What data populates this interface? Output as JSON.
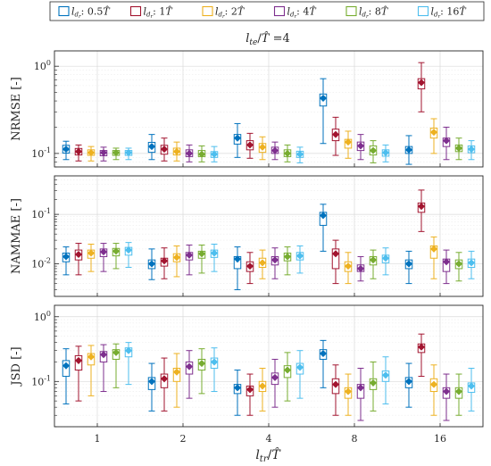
{
  "chart_data": {
    "type": "box",
    "title": "l_te / T̂ = 4",
    "xlabel": "l_tr / T̂",
    "categories": [
      "1",
      "2",
      "4",
      "8",
      "16"
    ],
    "legend": {
      "placement": "top",
      "entries": [
        {
          "label": "l_dr: 0.5T̂",
          "color": "#0072BD"
        },
        {
          "label": "l_dr: 1T̂",
          "color": "#A2142F"
        },
        {
          "label": "l_dr: 2T̂",
          "color": "#EDB120"
        },
        {
          "label": "l_dr: 4T̂",
          "color": "#7E2F8E"
        },
        {
          "label": "l_dr: 8T̂",
          "color": "#77AC30"
        },
        {
          "label": "l_dr: 16T̂",
          "color": "#4DBEEE"
        }
      ]
    },
    "panels": [
      {
        "ylabel": "NRMSE [-]",
        "yscale": "log",
        "ylim": [
          0.07,
          1.5
        ],
        "yticks": [
          {
            "label": "10",
            "exp": "0"
          },
          {
            "label": "10",
            "exp": "-1"
          }
        ],
        "series": [
          {
            "name": "l_dr: 0.5T̂",
            "values": [
              {
                "median": 0.112,
                "q1": 0.101,
                "q3": 0.124,
                "wlo": 0.085,
                "whi": 0.138
              },
              {
                "median": 0.12,
                "q1": 0.103,
                "q3": 0.134,
                "wlo": 0.085,
                "whi": 0.165
              },
              {
                "median": 0.15,
                "q1": 0.128,
                "q3": 0.165,
                "wlo": 0.09,
                "whi": 0.22
              },
              {
                "median": 0.43,
                "q1": 0.35,
                "q3": 0.48,
                "wlo": 0.13,
                "whi": 0.72
              },
              {
                "median": 0.11,
                "q1": 0.1,
                "q3": 0.12,
                "wlo": 0.075,
                "whi": 0.16
              }
            ]
          },
          {
            "name": "l_dr: 1T̂",
            "values": [
              {
                "median": 0.105,
                "q1": 0.096,
                "q3": 0.114,
                "wlo": 0.082,
                "whi": 0.125
              },
              {
                "median": 0.112,
                "q1": 0.098,
                "q3": 0.124,
                "wlo": 0.082,
                "whi": 0.15
              },
              {
                "median": 0.125,
                "q1": 0.11,
                "q3": 0.14,
                "wlo": 0.088,
                "whi": 0.17
              },
              {
                "median": 0.165,
                "q1": 0.14,
                "q3": 0.19,
                "wlo": 0.095,
                "whi": 0.26
              },
              {
                "median": 0.65,
                "q1": 0.55,
                "q3": 0.72,
                "wlo": 0.3,
                "whi": 1.1
              }
            ]
          },
          {
            "name": "l_dr: 2T̂",
            "values": [
              {
                "median": 0.102,
                "q1": 0.095,
                "q3": 0.11,
                "wlo": 0.082,
                "whi": 0.12
              },
              {
                "median": 0.105,
                "q1": 0.096,
                "q3": 0.115,
                "wlo": 0.082,
                "whi": 0.135
              },
              {
                "median": 0.118,
                "q1": 0.103,
                "q3": 0.13,
                "wlo": 0.085,
                "whi": 0.155
              },
              {
                "median": 0.135,
                "q1": 0.115,
                "q3": 0.145,
                "wlo": 0.088,
                "whi": 0.18
              },
              {
                "median": 0.175,
                "q1": 0.15,
                "q3": 0.195,
                "wlo": 0.1,
                "whi": 0.25
              }
            ]
          },
          {
            "name": "l_dr: 4T̂",
            "values": [
              {
                "median": 0.102,
                "q1": 0.094,
                "q3": 0.108,
                "wlo": 0.082,
                "whi": 0.118
              },
              {
                "median": 0.1,
                "q1": 0.092,
                "q3": 0.11,
                "wlo": 0.08,
                "whi": 0.125
              },
              {
                "median": 0.108,
                "q1": 0.1,
                "q3": 0.118,
                "wlo": 0.085,
                "whi": 0.135
              },
              {
                "median": 0.122,
                "q1": 0.108,
                "q3": 0.135,
                "wlo": 0.085,
                "whi": 0.165
              },
              {
                "median": 0.14,
                "q1": 0.12,
                "q3": 0.15,
                "wlo": 0.085,
                "whi": 0.2
              }
            ]
          },
          {
            "name": "l_dr: 8T̂",
            "values": [
              {
                "median": 0.102,
                "q1": 0.095,
                "q3": 0.108,
                "wlo": 0.085,
                "whi": 0.115
              },
              {
                "median": 0.098,
                "q1": 0.092,
                "q3": 0.108,
                "wlo": 0.08,
                "whi": 0.122
              },
              {
                "median": 0.1,
                "q1": 0.092,
                "q3": 0.11,
                "wlo": 0.08,
                "whi": 0.125
              },
              {
                "median": 0.108,
                "q1": 0.096,
                "q3": 0.122,
                "wlo": 0.078,
                "whi": 0.14
              },
              {
                "median": 0.115,
                "q1": 0.105,
                "q3": 0.125,
                "wlo": 0.085,
                "whi": 0.15
              }
            ]
          },
          {
            "name": "l_dr: 16T̂",
            "values": [
              {
                "median": 0.102,
                "q1": 0.095,
                "q3": 0.108,
                "wlo": 0.085,
                "whi": 0.115
              },
              {
                "median": 0.098,
                "q1": 0.09,
                "q3": 0.105,
                "wlo": 0.08,
                "whi": 0.12
              },
              {
                "median": 0.098,
                "q1": 0.09,
                "q3": 0.106,
                "wlo": 0.078,
                "whi": 0.118
              },
              {
                "median": 0.102,
                "q1": 0.093,
                "q3": 0.11,
                "wlo": 0.08,
                "whi": 0.125
              },
              {
                "median": 0.112,
                "q1": 0.102,
                "q3": 0.122,
                "wlo": 0.085,
                "whi": 0.14
              }
            ]
          }
        ]
      },
      {
        "ylabel": "NAMMAE [-]",
        "yscale": "log",
        "ylim": [
          0.0022,
          0.6
        ],
        "yticks": [
          {
            "label": "10",
            "exp": "-1"
          },
          {
            "label": "10",
            "exp": "-2"
          }
        ],
        "series": [
          {
            "name": "l_dr: 0.5T̂",
            "values": [
              {
                "median": 0.014,
                "q1": 0.011,
                "q3": 0.0165,
                "wlo": 0.006,
                "whi": 0.022
              },
              {
                "median": 0.01,
                "q1": 0.008,
                "q3": 0.012,
                "wlo": 0.0048,
                "whi": 0.02
              },
              {
                "median": 0.0125,
                "q1": 0.008,
                "q3": 0.014,
                "wlo": 0.003,
                "whi": 0.022
              },
              {
                "median": 0.095,
                "q1": 0.06,
                "q3": 0.11,
                "wlo": 0.018,
                "whi": 0.16
              },
              {
                "median": 0.01,
                "q1": 0.008,
                "q3": 0.012,
                "wlo": 0.004,
                "whi": 0.018
              }
            ]
          },
          {
            "name": "l_dr: 1T̂",
            "values": [
              {
                "median": 0.0155,
                "q1": 0.012,
                "q3": 0.019,
                "wlo": 0.006,
                "whi": 0.026
              },
              {
                "median": 0.0115,
                "q1": 0.009,
                "q3": 0.013,
                "wlo": 0.005,
                "whi": 0.021
              },
              {
                "median": 0.009,
                "q1": 0.007,
                "q3": 0.011,
                "wlo": 0.004,
                "whi": 0.017
              },
              {
                "median": 0.016,
                "q1": 0.008,
                "q3": 0.02,
                "wlo": 0.004,
                "whi": 0.03
              },
              {
                "median": 0.145,
                "q1": 0.11,
                "q3": 0.17,
                "wlo": 0.045,
                "whi": 0.31
              }
            ]
          },
          {
            "name": "l_dr: 2T̂",
            "values": [
              {
                "median": 0.0165,
                "q1": 0.013,
                "q3": 0.019,
                "wlo": 0.007,
                "whi": 0.025
              },
              {
                "median": 0.0135,
                "q1": 0.011,
                "q3": 0.016,
                "wlo": 0.0055,
                "whi": 0.023
              },
              {
                "median": 0.0105,
                "q1": 0.0085,
                "q3": 0.013,
                "wlo": 0.005,
                "whi": 0.019
              },
              {
                "median": 0.009,
                "q1": 0.007,
                "q3": 0.011,
                "wlo": 0.004,
                "whi": 0.017
              },
              {
                "median": 0.02,
                "q1": 0.013,
                "q3": 0.023,
                "wlo": 0.005,
                "whi": 0.035
              }
            ]
          },
          {
            "name": "l_dr: 4T̂",
            "values": [
              {
                "median": 0.0175,
                "q1": 0.014,
                "q3": 0.02,
                "wlo": 0.007,
                "whi": 0.026
              },
              {
                "median": 0.015,
                "q1": 0.012,
                "q3": 0.017,
                "wlo": 0.006,
                "whi": 0.024
              },
              {
                "median": 0.012,
                "q1": 0.0095,
                "q3": 0.014,
                "wlo": 0.005,
                "whi": 0.021
              },
              {
                "median": 0.008,
                "q1": 0.007,
                "q3": 0.0095,
                "wlo": 0.0045,
                "whi": 0.014
              },
              {
                "median": 0.011,
                "q1": 0.007,
                "q3": 0.0125,
                "wlo": 0.004,
                "whi": 0.019
              }
            ]
          },
          {
            "name": "l_dr: 8T̂",
            "values": [
              {
                "median": 0.018,
                "q1": 0.0145,
                "q3": 0.0205,
                "wlo": 0.008,
                "whi": 0.026
              },
              {
                "median": 0.016,
                "q1": 0.013,
                "q3": 0.018,
                "wlo": 0.0065,
                "whi": 0.024
              },
              {
                "median": 0.014,
                "q1": 0.0115,
                "q3": 0.0165,
                "wlo": 0.006,
                "whi": 0.022
              },
              {
                "median": 0.012,
                "q1": 0.0095,
                "q3": 0.014,
                "wlo": 0.005,
                "whi": 0.019
              },
              {
                "median": 0.01,
                "q1": 0.008,
                "q3": 0.012,
                "wlo": 0.0045,
                "whi": 0.017
              }
            ]
          },
          {
            "name": "l_dr: 16T̂",
            "values": [
              {
                "median": 0.019,
                "q1": 0.015,
                "q3": 0.0215,
                "wlo": 0.0085,
                "whi": 0.027
              },
              {
                "median": 0.0165,
                "q1": 0.0135,
                "q3": 0.019,
                "wlo": 0.007,
                "whi": 0.025
              },
              {
                "median": 0.0145,
                "q1": 0.012,
                "q3": 0.017,
                "wlo": 0.0065,
                "whi": 0.023
              },
              {
                "median": 0.013,
                "q1": 0.0105,
                "q3": 0.015,
                "wlo": 0.006,
                "whi": 0.021
              },
              {
                "median": 0.0105,
                "q1": 0.0085,
                "q3": 0.0125,
                "wlo": 0.005,
                "whi": 0.018
              }
            ]
          }
        ]
      },
      {
        "ylabel": "JSD [-]",
        "yscale": "log",
        "ylim": [
          0.02,
          1.5
        ],
        "yticks": [
          {
            "label": "10",
            "exp": "0"
          },
          {
            "label": "10",
            "exp": "-1"
          }
        ],
        "series": [
          {
            "name": "l_dr: 0.5T̂",
            "values": [
              {
                "median": 0.175,
                "q1": 0.12,
                "q3": 0.21,
                "wlo": 0.045,
                "whi": 0.32
              },
              {
                "median": 0.1,
                "q1": 0.075,
                "q3": 0.115,
                "wlo": 0.035,
                "whi": 0.19
              },
              {
                "median": 0.08,
                "q1": 0.065,
                "q3": 0.09,
                "wlo": 0.03,
                "whi": 0.15
              },
              {
                "median": 0.27,
                "q1": 0.22,
                "q3": 0.31,
                "wlo": 0.08,
                "whi": 0.43
              },
              {
                "median": 0.1,
                "q1": 0.08,
                "q3": 0.115,
                "wlo": 0.04,
                "whi": 0.19
              }
            ]
          },
          {
            "name": "l_dr: 1T̂",
            "values": [
              {
                "median": 0.21,
                "q1": 0.15,
                "q3": 0.25,
                "wlo": 0.05,
                "whi": 0.35
              },
              {
                "median": 0.11,
                "q1": 0.08,
                "q3": 0.13,
                "wlo": 0.035,
                "whi": 0.23
              },
              {
                "median": 0.075,
                "q1": 0.06,
                "q3": 0.085,
                "wlo": 0.03,
                "whi": 0.13
              },
              {
                "median": 0.09,
                "q1": 0.065,
                "q3": 0.11,
                "wlo": 0.03,
                "whi": 0.18
              },
              {
                "median": 0.34,
                "q1": 0.28,
                "q3": 0.38,
                "wlo": 0.12,
                "whi": 0.54
              }
            ]
          },
          {
            "name": "l_dr: 2T̂",
            "values": [
              {
                "median": 0.24,
                "q1": 0.18,
                "q3": 0.27,
                "wlo": 0.06,
                "whi": 0.36
              },
              {
                "median": 0.14,
                "q1": 0.1,
                "q3": 0.16,
                "wlo": 0.04,
                "whi": 0.27
              },
              {
                "median": 0.085,
                "q1": 0.07,
                "q3": 0.1,
                "wlo": 0.035,
                "whi": 0.16
              },
              {
                "median": 0.07,
                "q1": 0.055,
                "q3": 0.08,
                "wlo": 0.03,
                "whi": 0.13
              },
              {
                "median": 0.09,
                "q1": 0.07,
                "q3": 0.11,
                "wlo": 0.03,
                "whi": 0.18
              }
            ]
          },
          {
            "name": "l_dr: 4T̂",
            "values": [
              {
                "median": 0.26,
                "q1": 0.2,
                "q3": 0.29,
                "wlo": 0.07,
                "whi": 0.37
              },
              {
                "median": 0.17,
                "q1": 0.13,
                "q3": 0.2,
                "wlo": 0.055,
                "whi": 0.3
              },
              {
                "median": 0.115,
                "q1": 0.09,
                "q3": 0.135,
                "wlo": 0.04,
                "whi": 0.22
              },
              {
                "median": 0.08,
                "q1": 0.055,
                "q3": 0.09,
                "wlo": 0.025,
                "whi": 0.16
              },
              {
                "median": 0.07,
                "q1": 0.055,
                "q3": 0.08,
                "wlo": 0.025,
                "whi": 0.13
              }
            ]
          },
          {
            "name": "l_dr: 8T̂",
            "values": [
              {
                "median": 0.28,
                "q1": 0.22,
                "q3": 0.31,
                "wlo": 0.08,
                "whi": 0.38
              },
              {
                "median": 0.19,
                "q1": 0.15,
                "q3": 0.22,
                "wlo": 0.065,
                "whi": 0.32
              },
              {
                "median": 0.15,
                "q1": 0.115,
                "q3": 0.175,
                "wlo": 0.05,
                "whi": 0.28
              },
              {
                "median": 0.095,
                "q1": 0.075,
                "q3": 0.11,
                "wlo": 0.035,
                "whi": 0.2
              },
              {
                "median": 0.07,
                "q1": 0.055,
                "q3": 0.08,
                "wlo": 0.03,
                "whi": 0.13
              }
            ]
          },
          {
            "name": "l_dr: 16T̂",
            "values": [
              {
                "median": 0.3,
                "q1": 0.24,
                "q3": 0.33,
                "wlo": 0.09,
                "whi": 0.4
              },
              {
                "median": 0.2,
                "q1": 0.16,
                "q3": 0.23,
                "wlo": 0.07,
                "whi": 0.33
              },
              {
                "median": 0.165,
                "q1": 0.13,
                "q3": 0.19,
                "wlo": 0.055,
                "whi": 0.3
              },
              {
                "median": 0.125,
                "q1": 0.1,
                "q3": 0.145,
                "wlo": 0.045,
                "whi": 0.24
              },
              {
                "median": 0.085,
                "q1": 0.068,
                "q3": 0.095,
                "wlo": 0.035,
                "whi": 0.16
              }
            ]
          }
        ]
      }
    ],
    "grid": true
  }
}
